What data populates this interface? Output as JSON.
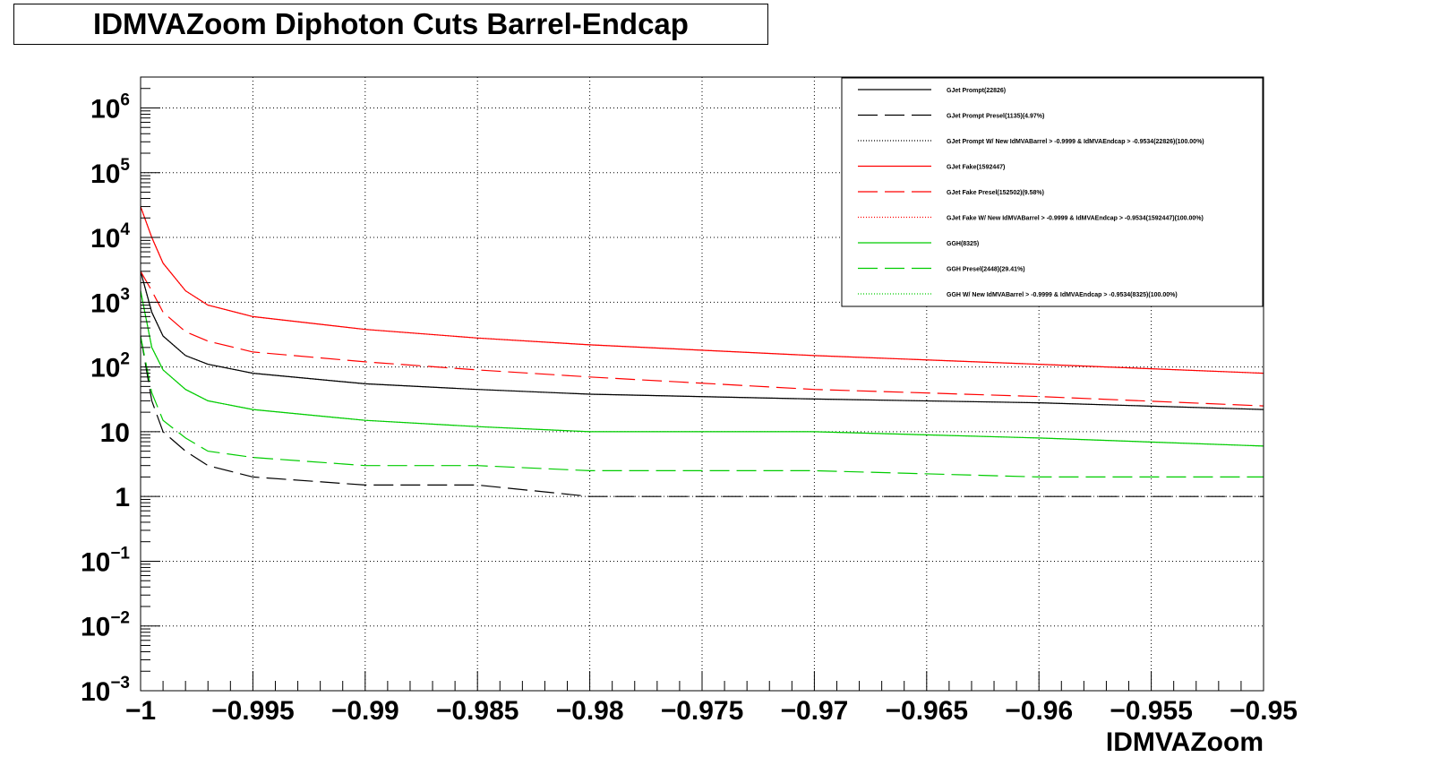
{
  "chart_data": {
    "type": "line",
    "title": "IDMVAZoom Diphoton Cuts Barrel-Endcap",
    "xlabel": "IDMVAZoom",
    "ylabel": "",
    "xlim": [
      -1,
      -0.95
    ],
    "ylim": [
      0.001,
      3000000
    ],
    "y_scale": "log",
    "grid": true,
    "legend_position": "top-right",
    "x_tick_labels": [
      "−1",
      "−0.995",
      "−0.99",
      "−0.985",
      "−0.98",
      "−0.975",
      "−0.97",
      "−0.965",
      "−0.96",
      "−0.955",
      "−0.95"
    ],
    "x_ticks": [
      -1,
      -0.995,
      -0.99,
      -0.985,
      -0.98,
      -0.975,
      -0.97,
      -0.965,
      -0.96,
      -0.955,
      -0.95
    ],
    "y_ticks": [
      {
        "value": 0.001,
        "base": "10",
        "exp": "−3"
      },
      {
        "value": 0.01,
        "base": "10",
        "exp": "−2"
      },
      {
        "value": 0.1,
        "base": "10",
        "exp": "−1"
      },
      {
        "value": 1,
        "base": "1",
        "exp": ""
      },
      {
        "value": 10,
        "base": "10",
        "exp": ""
      },
      {
        "value": 100,
        "base": "10",
        "exp": "2"
      },
      {
        "value": 1000,
        "base": "10",
        "exp": "3"
      },
      {
        "value": 10000,
        "base": "10",
        "exp": "4"
      },
      {
        "value": 100000,
        "base": "10",
        "exp": "5"
      },
      {
        "value": 1000000,
        "base": "10",
        "exp": "6"
      }
    ],
    "series": [
      {
        "name": "GJet Prompt(22826)",
        "color": "#000000",
        "style": "solid",
        "x": [
          -1.0,
          -0.9995,
          -0.999,
          -0.998,
          -0.997,
          -0.995,
          -0.99,
          -0.985,
          -0.98,
          -0.97,
          -0.96,
          -0.95
        ],
        "values": [
          3000,
          700,
          300,
          150,
          110,
          80,
          55,
          45,
          38,
          32,
          28,
          22
        ]
      },
      {
        "name": "GJet Prompt Presel(1135)(4.97%)",
        "color": "#000000",
        "style": "dashed",
        "x": [
          -1.0,
          -0.9995,
          -0.999,
          -0.998,
          -0.997,
          -0.995,
          -0.99,
          -0.985,
          -0.98,
          -0.97,
          -0.96,
          -0.95
        ],
        "values": [
          300,
          30,
          10,
          5,
          3,
          2,
          1.5,
          1.5,
          1,
          1,
          1,
          1
        ]
      },
      {
        "name": "GJet Prompt W/ New IdMVABarrel > -0.9999 & IdMVAEndcap > -0.9534(22826)(100.00%)",
        "color": "#000000",
        "style": "dotted",
        "x": [
          -1.0,
          -0.9995,
          -0.999,
          -0.998,
          -0.997,
          -0.995,
          -0.99,
          -0.985,
          -0.98,
          -0.97,
          -0.96,
          -0.95
        ],
        "values": [
          3000,
          700,
          300,
          150,
          110,
          80,
          55,
          45,
          38,
          32,
          28,
          22
        ]
      },
      {
        "name": "GJet Fake(1592447)",
        "color": "#ff0000",
        "style": "solid",
        "x": [
          -1.0,
          -0.9995,
          -0.999,
          -0.998,
          -0.997,
          -0.995,
          -0.99,
          -0.985,
          -0.98,
          -0.97,
          -0.96,
          -0.95
        ],
        "values": [
          30000,
          10000,
          4000,
          1500,
          900,
          600,
          380,
          280,
          220,
          150,
          110,
          80
        ]
      },
      {
        "name": "GJet Fake Presel(152502)(9.58%)",
        "color": "#ff0000",
        "style": "dashed",
        "x": [
          -1.0,
          -0.9995,
          -0.999,
          -0.998,
          -0.997,
          -0.995,
          -0.99,
          -0.985,
          -0.98,
          -0.97,
          -0.96,
          -0.95
        ],
        "values": [
          3000,
          1500,
          700,
          350,
          250,
          170,
          120,
          90,
          70,
          45,
          35,
          25
        ]
      },
      {
        "name": "GJet Fake W/ New IdMVABarrel > -0.9999 & IdMVAEndcap > -0.9534(1592447)(100.00%)",
        "color": "#ff0000",
        "style": "dotted",
        "x": [
          -1.0,
          -0.9995,
          -0.999,
          -0.998,
          -0.997,
          -0.995,
          -0.99,
          -0.985,
          -0.98,
          -0.97,
          -0.96,
          -0.95
        ],
        "values": [
          30000,
          10000,
          4000,
          1500,
          900,
          600,
          380,
          280,
          220,
          150,
          110,
          80
        ]
      },
      {
        "name": "GGH(8325)",
        "color": "#00cc00",
        "style": "solid",
        "x": [
          -1.0,
          -0.9995,
          -0.999,
          -0.998,
          -0.997,
          -0.995,
          -0.99,
          -0.985,
          -0.98,
          -0.97,
          -0.96,
          -0.95
        ],
        "values": [
          1500,
          200,
          90,
          45,
          30,
          22,
          15,
          12,
          10,
          10,
          8,
          6
        ]
      },
      {
        "name": "GGH Presel(2448)(29.41%)",
        "color": "#00cc00",
        "style": "dashed",
        "x": [
          -1.0,
          -0.9995,
          -0.999,
          -0.998,
          -0.997,
          -0.995,
          -0.99,
          -0.985,
          -0.98,
          -0.97,
          -0.96,
          -0.95
        ],
        "values": [
          300,
          40,
          15,
          8,
          5,
          4,
          3,
          3,
          2.5,
          2.5,
          2,
          2
        ]
      },
      {
        "name": "GGH W/ New IdMVABarrel > -0.9999 & IdMVAEndcap > -0.9534(8325)(100.00%)",
        "color": "#00cc00",
        "style": "dotted",
        "x": [
          -1.0,
          -0.9995,
          -0.999,
          -0.998,
          -0.997,
          -0.995,
          -0.99,
          -0.985,
          -0.98,
          -0.97,
          -0.96,
          -0.95
        ],
        "values": [
          1500,
          200,
          90,
          45,
          30,
          22,
          15,
          12,
          10,
          10,
          8,
          6
        ]
      }
    ]
  }
}
